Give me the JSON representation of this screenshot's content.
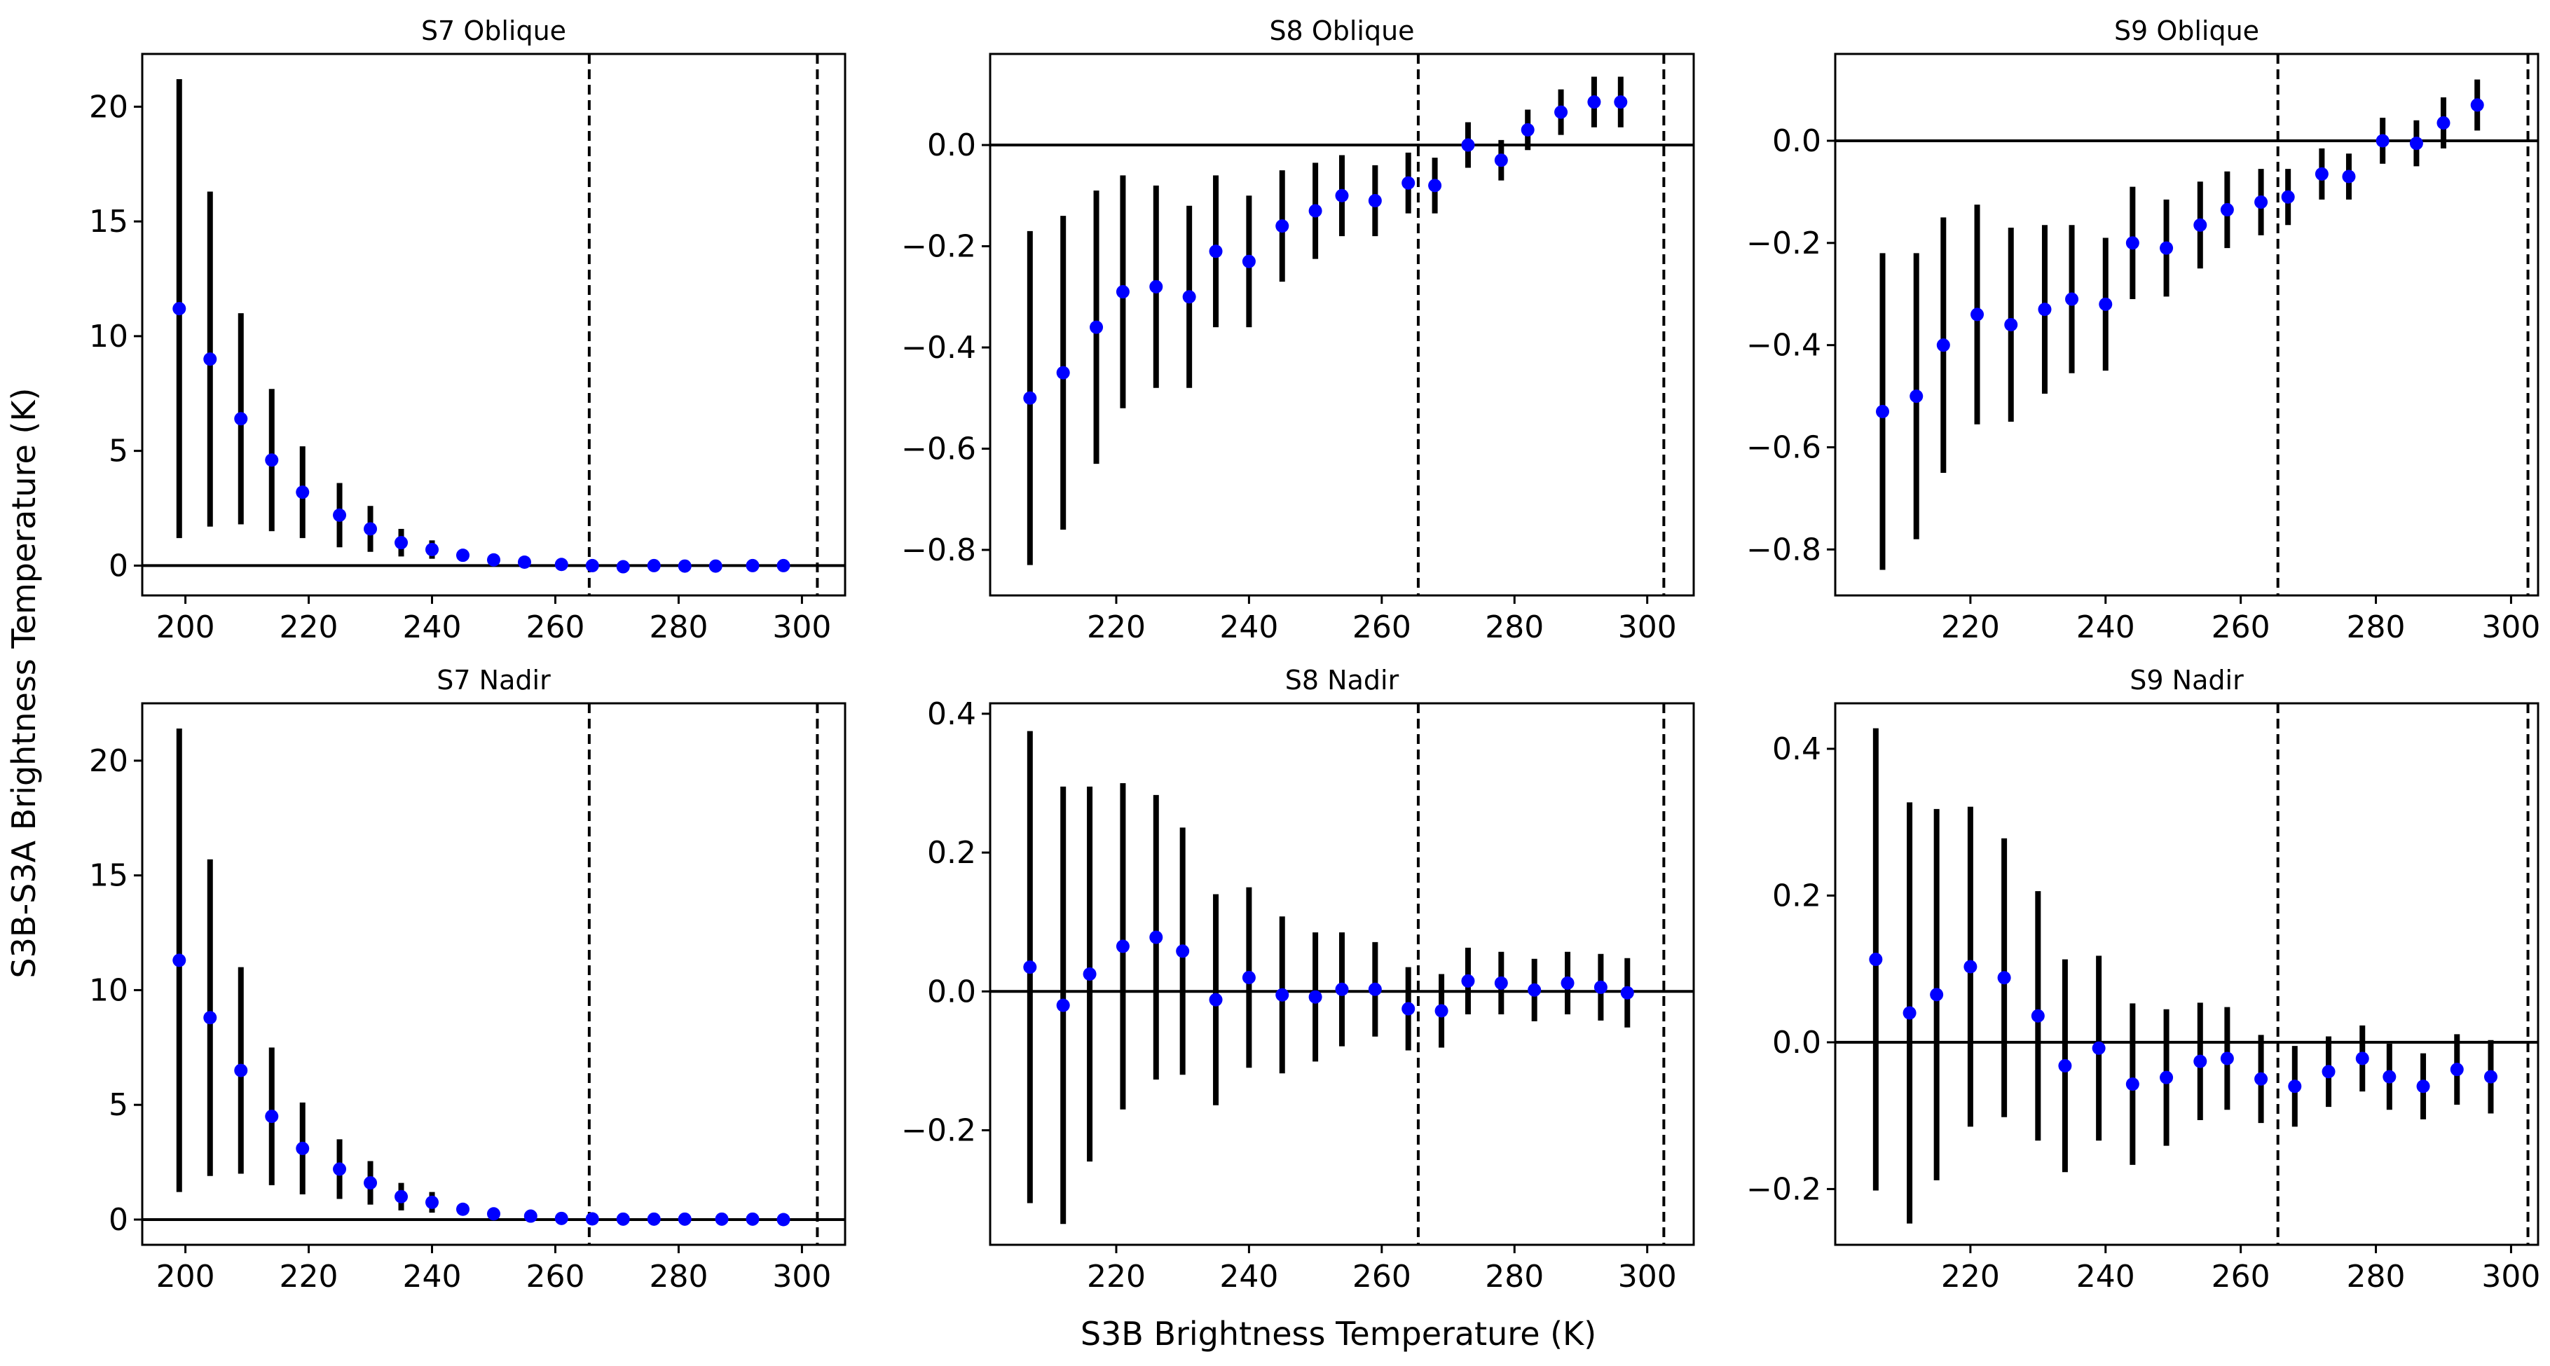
{
  "figure": {
    "ylabel": "S3B-S3A Brightness Temperature (K)",
    "xlabel": "S3B Brightness Temperature (K)",
    "marker_color": "#0000ff",
    "errorbar_color": "#000000"
  },
  "chart_data": [
    {
      "type": "scatter",
      "title": "S7 Oblique",
      "xlim": [
        193,
        307
      ],
      "ylim": [
        -1.3,
        22.3
      ],
      "xticks": [
        "200",
        "220",
        "240",
        "260",
        "280",
        "300"
      ],
      "yticks": [
        "0",
        "5",
        "10",
        "15",
        "20"
      ],
      "hline": 0,
      "vlines": [
        265.5,
        302.5
      ],
      "grid": false,
      "points": [
        {
          "x": 199,
          "y": 11.2,
          "err": 10.0
        },
        {
          "x": 204,
          "y": 9.0,
          "err": 7.3
        },
        {
          "x": 209,
          "y": 6.4,
          "err": 4.6
        },
        {
          "x": 214,
          "y": 4.6,
          "err": 3.1
        },
        {
          "x": 219,
          "y": 3.2,
          "err": 2.0
        },
        {
          "x": 225,
          "y": 2.2,
          "err": 1.4
        },
        {
          "x": 230,
          "y": 1.6,
          "err": 1.0
        },
        {
          "x": 235,
          "y": 1.0,
          "err": 0.6
        },
        {
          "x": 240,
          "y": 0.7,
          "err": 0.4
        },
        {
          "x": 245,
          "y": 0.45,
          "err": 0.15
        },
        {
          "x": 250,
          "y": 0.25,
          "err": 0.05
        },
        {
          "x": 255,
          "y": 0.15,
          "err": 0.05
        },
        {
          "x": 261,
          "y": 0.05,
          "err": 0.05
        },
        {
          "x": 266,
          "y": 0.0,
          "err": 0.05
        },
        {
          "x": 271,
          "y": -0.05,
          "err": 0.05
        },
        {
          "x": 276,
          "y": 0.0,
          "err": 0.05
        },
        {
          "x": 281,
          "y": -0.02,
          "err": 0.05
        },
        {
          "x": 286,
          "y": -0.02,
          "err": 0.05
        },
        {
          "x": 292,
          "y": 0.0,
          "err": 0.05
        },
        {
          "x": 297,
          "y": 0.0,
          "err": 0.05
        }
      ]
    },
    {
      "type": "scatter",
      "title": "S8 Oblique",
      "xlim": [
        201,
        307
      ],
      "ylim": [
        -0.89,
        0.18
      ],
      "xticks": [
        "220",
        "240",
        "260",
        "280",
        "300"
      ],
      "yticks": [
        "−0.8",
        "−0.6",
        "−0.4",
        "−0.2",
        "0.0"
      ],
      "hline": 0,
      "vlines": [
        265.5,
        302.5
      ],
      "grid": false,
      "points": [
        {
          "x": 207,
          "y": -0.5,
          "err": 0.33
        },
        {
          "x": 212,
          "y": -0.45,
          "err": 0.31
        },
        {
          "x": 217,
          "y": -0.36,
          "err": 0.27
        },
        {
          "x": 221,
          "y": -0.29,
          "err": 0.23
        },
        {
          "x": 226,
          "y": -0.28,
          "err": 0.2
        },
        {
          "x": 231,
          "y": -0.3,
          "err": 0.18
        },
        {
          "x": 235,
          "y": -0.21,
          "err": 0.15
        },
        {
          "x": 240,
          "y": -0.23,
          "err": 0.13
        },
        {
          "x": 245,
          "y": -0.16,
          "err": 0.11
        },
        {
          "x": 250,
          "y": -0.13,
          "err": 0.095
        },
        {
          "x": 254,
          "y": -0.1,
          "err": 0.08
        },
        {
          "x": 259,
          "y": -0.11,
          "err": 0.07
        },
        {
          "x": 264,
          "y": -0.075,
          "err": 0.06
        },
        {
          "x": 268,
          "y": -0.08,
          "err": 0.055
        },
        {
          "x": 273,
          "y": 0.0,
          "err": 0.045
        },
        {
          "x": 278,
          "y": -0.03,
          "err": 0.04
        },
        {
          "x": 282,
          "y": 0.03,
          "err": 0.04
        },
        {
          "x": 287,
          "y": 0.065,
          "err": 0.045
        },
        {
          "x": 292,
          "y": 0.085,
          "err": 0.05
        },
        {
          "x": 296,
          "y": 0.085,
          "err": 0.05
        }
      ]
    },
    {
      "type": "scatter",
      "title": "S9 Oblique",
      "xlim": [
        200,
        304
      ],
      "ylim": [
        -0.89,
        0.17
      ],
      "xticks": [
        "220",
        "240",
        "260",
        "280",
        "300"
      ],
      "yticks": [
        "−0.8",
        "−0.6",
        "−0.4",
        "−0.2",
        "0.0"
      ],
      "hline": 0,
      "vlines": [
        265.5,
        302.5
      ],
      "grid": false,
      "points": [
        {
          "x": 207,
          "y": -0.53,
          "err": 0.31
        },
        {
          "x": 212,
          "y": -0.5,
          "err": 0.28
        },
        {
          "x": 216,
          "y": -0.4,
          "err": 0.25
        },
        {
          "x": 221,
          "y": -0.34,
          "err": 0.215
        },
        {
          "x": 226,
          "y": -0.36,
          "err": 0.19
        },
        {
          "x": 231,
          "y": -0.33,
          "err": 0.165
        },
        {
          "x": 235,
          "y": -0.31,
          "err": 0.145
        },
        {
          "x": 240,
          "y": -0.32,
          "err": 0.13
        },
        {
          "x": 244,
          "y": -0.2,
          "err": 0.11
        },
        {
          "x": 249,
          "y": -0.21,
          "err": 0.095
        },
        {
          "x": 254,
          "y": -0.165,
          "err": 0.085
        },
        {
          "x": 258,
          "y": -0.135,
          "err": 0.075
        },
        {
          "x": 263,
          "y": -0.12,
          "err": 0.065
        },
        {
          "x": 267,
          "y": -0.11,
          "err": 0.055
        },
        {
          "x": 272,
          "y": -0.065,
          "err": 0.05
        },
        {
          "x": 276,
          "y": -0.07,
          "err": 0.045
        },
        {
          "x": 281,
          "y": 0.0,
          "err": 0.045
        },
        {
          "x": 286,
          "y": -0.005,
          "err": 0.045
        },
        {
          "x": 290,
          "y": 0.035,
          "err": 0.05
        },
        {
          "x": 295,
          "y": 0.07,
          "err": 0.05
        }
      ]
    },
    {
      "type": "scatter",
      "title": "S7 Nadir",
      "xlim": [
        193,
        307
      ],
      "ylim": [
        -1.1,
        22.5
      ],
      "xticks": [
        "200",
        "220",
        "240",
        "260",
        "280",
        "300"
      ],
      "yticks": [
        "0",
        "5",
        "10",
        "15",
        "20"
      ],
      "hline": 0,
      "vlines": [
        265.5,
        302.5
      ],
      "grid": false,
      "points": [
        {
          "x": 199,
          "y": 11.3,
          "err": 10.1
        },
        {
          "x": 204,
          "y": 8.8,
          "err": 6.9
        },
        {
          "x": 209,
          "y": 6.5,
          "err": 4.5
        },
        {
          "x": 214,
          "y": 4.5,
          "err": 3.0
        },
        {
          "x": 219,
          "y": 3.1,
          "err": 2.0
        },
        {
          "x": 225,
          "y": 2.2,
          "err": 1.3
        },
        {
          "x": 230,
          "y": 1.6,
          "err": 0.95
        },
        {
          "x": 235,
          "y": 1.0,
          "err": 0.6
        },
        {
          "x": 240,
          "y": 0.75,
          "err": 0.45
        },
        {
          "x": 245,
          "y": 0.45,
          "err": 0.15
        },
        {
          "x": 250,
          "y": 0.25,
          "err": 0.05
        },
        {
          "x": 256,
          "y": 0.15,
          "err": 0.05
        },
        {
          "x": 261,
          "y": 0.05,
          "err": 0.05
        },
        {
          "x": 266,
          "y": 0.03,
          "err": 0.05
        },
        {
          "x": 271,
          "y": 0.02,
          "err": 0.05
        },
        {
          "x": 276,
          "y": 0.02,
          "err": 0.05
        },
        {
          "x": 281,
          "y": 0.02,
          "err": 0.05
        },
        {
          "x": 287,
          "y": 0.02,
          "err": 0.05
        },
        {
          "x": 292,
          "y": 0.02,
          "err": 0.05
        },
        {
          "x": 297,
          "y": 0.0,
          "err": 0.05
        }
      ]
    },
    {
      "type": "scatter",
      "title": "S8 Nadir",
      "xlim": [
        201,
        307
      ],
      "ylim": [
        -0.365,
        0.415
      ],
      "xticks": [
        "220",
        "240",
        "260",
        "280",
        "300"
      ],
      "yticks": [
        "−0.2",
        "0.0",
        "0.2",
        "0.4"
      ],
      "hline": 0,
      "vlines": [
        265.5,
        302.5
      ],
      "grid": false,
      "points": [
        {
          "x": 207,
          "y": 0.035,
          "err": 0.34
        },
        {
          "x": 212,
          "y": -0.02,
          "err": 0.315
        },
        {
          "x": 216,
          "y": 0.025,
          "err": 0.27
        },
        {
          "x": 221,
          "y": 0.065,
          "err": 0.235
        },
        {
          "x": 226,
          "y": 0.078,
          "err": 0.205
        },
        {
          "x": 230,
          "y": 0.058,
          "err": 0.178
        },
        {
          "x": 235,
          "y": -0.012,
          "err": 0.152
        },
        {
          "x": 240,
          "y": 0.02,
          "err": 0.13
        },
        {
          "x": 245,
          "y": -0.005,
          "err": 0.113
        },
        {
          "x": 250,
          "y": -0.008,
          "err": 0.093
        },
        {
          "x": 254,
          "y": 0.003,
          "err": 0.082
        },
        {
          "x": 259,
          "y": 0.003,
          "err": 0.068
        },
        {
          "x": 264,
          "y": -0.025,
          "err": 0.06
        },
        {
          "x": 269,
          "y": -0.028,
          "err": 0.053
        },
        {
          "x": 273,
          "y": 0.015,
          "err": 0.048
        },
        {
          "x": 278,
          "y": 0.012,
          "err": 0.045
        },
        {
          "x": 283,
          "y": 0.002,
          "err": 0.045
        },
        {
          "x": 288,
          "y": 0.012,
          "err": 0.045
        },
        {
          "x": 293,
          "y": 0.006,
          "err": 0.048
        },
        {
          "x": 297,
          "y": -0.002,
          "err": 0.05
        }
      ]
    },
    {
      "type": "scatter",
      "title": "S9 Nadir",
      "xlim": [
        200,
        304
      ],
      "ylim": [
        -0.276,
        0.462
      ],
      "xticks": [
        "220",
        "240",
        "260",
        "280",
        "300"
      ],
      "yticks": [
        "−0.2",
        "0.0",
        "0.2",
        "0.4"
      ],
      "hline": 0,
      "vlines": [
        265.5,
        302.5
      ],
      "grid": false,
      "points": [
        {
          "x": 206,
          "y": 0.113,
          "err": 0.315
        },
        {
          "x": 211,
          "y": 0.04,
          "err": 0.287
        },
        {
          "x": 215,
          "y": 0.065,
          "err": 0.253
        },
        {
          "x": 220,
          "y": 0.103,
          "err": 0.218
        },
        {
          "x": 225,
          "y": 0.088,
          "err": 0.19
        },
        {
          "x": 230,
          "y": 0.036,
          "err": 0.17
        },
        {
          "x": 234,
          "y": -0.032,
          "err": 0.145
        },
        {
          "x": 239,
          "y": -0.008,
          "err": 0.126
        },
        {
          "x": 244,
          "y": -0.057,
          "err": 0.11
        },
        {
          "x": 249,
          "y": -0.048,
          "err": 0.093
        },
        {
          "x": 254,
          "y": -0.026,
          "err": 0.08
        },
        {
          "x": 258,
          "y": -0.022,
          "err": 0.07
        },
        {
          "x": 263,
          "y": -0.05,
          "err": 0.06
        },
        {
          "x": 268,
          "y": -0.06,
          "err": 0.055
        },
        {
          "x": 273,
          "y": -0.04,
          "err": 0.048
        },
        {
          "x": 278,
          "y": -0.022,
          "err": 0.045
        },
        {
          "x": 282,
          "y": -0.047,
          "err": 0.045
        },
        {
          "x": 287,
          "y": -0.06,
          "err": 0.045
        },
        {
          "x": 292,
          "y": -0.037,
          "err": 0.048
        },
        {
          "x": 297,
          "y": -0.047,
          "err": 0.05
        }
      ]
    }
  ]
}
